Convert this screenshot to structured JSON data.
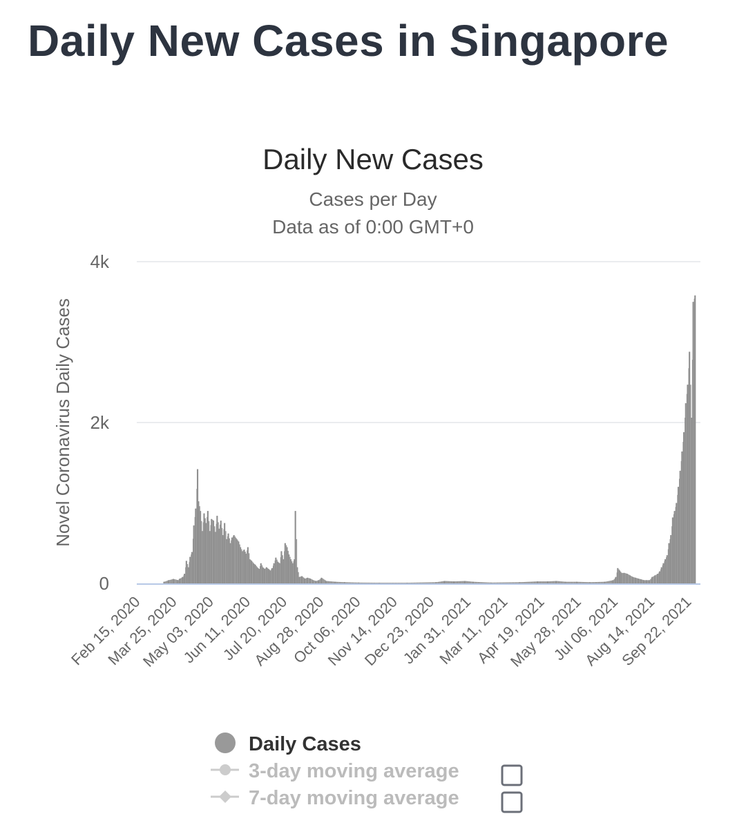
{
  "page": {
    "title": "Daily New Cases in Singapore"
  },
  "chart_data": {
    "type": "bar",
    "title": "Daily New Cases",
    "subtitle": "Cases per Day",
    "subtitle2": "Data as of 0:00 GMT+0",
    "ylabel": "Novel Coronavirus Daily Cases",
    "xlabel": "",
    "ylim": [
      0,
      4000
    ],
    "yticks": [
      {
        "value": 0,
        "label": "0"
      },
      {
        "value": 2000,
        "label": "2k"
      },
      {
        "value": 4000,
        "label": "4k"
      }
    ],
    "x_start": "2020-02-15",
    "x_end": "2021-10-12",
    "xtick_labels": [
      "Feb 15, 2020",
      "Mar 25, 2020",
      "May 03, 2020",
      "Jun 11, 2020",
      "Jul 20, 2020",
      "Aug 28, 2020",
      "Oct 06, 2020",
      "Nov 14, 2020",
      "Dec 23, 2020",
      "Jan 31, 2021",
      "Mar 11, 2021",
      "Apr 19, 2021",
      "May 28, 2021",
      "Jul 06, 2021",
      "Aug 14, 2021",
      "Sep 22, 2021"
    ],
    "grid": true,
    "legend_position": "bottom",
    "series": [
      {
        "name": "Daily Cases",
        "color": "#999999",
        "points": [
          [
            "2020-03-15",
            20
          ],
          [
            "2020-03-20",
            40
          ],
          [
            "2020-03-25",
            55
          ],
          [
            "2020-03-30",
            40
          ],
          [
            "2020-04-01",
            60
          ],
          [
            "2020-04-04",
            80
          ],
          [
            "2020-04-06",
            120
          ],
          [
            "2020-04-08",
            280
          ],
          [
            "2020-04-10",
            200
          ],
          [
            "2020-04-12",
            330
          ],
          [
            "2020-04-14",
            390
          ],
          [
            "2020-04-16",
            720
          ],
          [
            "2020-04-18",
            930
          ],
          [
            "2020-04-20",
            1420
          ],
          [
            "2020-04-21",
            1020
          ],
          [
            "2020-04-23",
            900
          ],
          [
            "2020-04-25",
            650
          ],
          [
            "2020-04-27",
            870
          ],
          [
            "2020-04-29",
            750
          ],
          [
            "2020-05-01",
            900
          ],
          [
            "2020-05-03",
            650
          ],
          [
            "2020-05-05",
            800
          ],
          [
            "2020-05-07",
            780
          ],
          [
            "2020-05-09",
            640
          ],
          [
            "2020-05-11",
            840
          ],
          [
            "2020-05-13",
            680
          ],
          [
            "2020-05-15",
            780
          ],
          [
            "2020-05-17",
            600
          ],
          [
            "2020-05-19",
            750
          ],
          [
            "2020-05-21",
            550
          ],
          [
            "2020-05-23",
            620
          ],
          [
            "2020-05-25",
            500
          ],
          [
            "2020-05-27",
            570
          ],
          [
            "2020-05-29",
            600
          ],
          [
            "2020-06-01",
            550
          ],
          [
            "2020-06-03",
            520
          ],
          [
            "2020-06-05",
            450
          ],
          [
            "2020-06-07",
            400
          ],
          [
            "2020-06-09",
            420
          ],
          [
            "2020-06-11",
            370
          ],
          [
            "2020-06-13",
            450
          ],
          [
            "2020-06-15",
            300
          ],
          [
            "2020-06-17",
            280
          ],
          [
            "2020-06-19",
            250
          ],
          [
            "2020-06-21",
            230
          ],
          [
            "2020-06-23",
            200
          ],
          [
            "2020-06-25",
            180
          ],
          [
            "2020-06-27",
            250
          ],
          [
            "2020-06-29",
            200
          ],
          [
            "2020-07-01",
            180
          ],
          [
            "2020-07-03",
            200
          ],
          [
            "2020-07-05",
            180
          ],
          [
            "2020-07-07",
            160
          ],
          [
            "2020-07-09",
            190
          ],
          [
            "2020-07-11",
            250
          ],
          [
            "2020-07-13",
            320
          ],
          [
            "2020-07-15",
            270
          ],
          [
            "2020-07-17",
            250
          ],
          [
            "2020-07-19",
            400
          ],
          [
            "2020-07-21",
            300
          ],
          [
            "2020-07-23",
            500
          ],
          [
            "2020-07-25",
            450
          ],
          [
            "2020-07-27",
            360
          ],
          [
            "2020-07-29",
            300
          ],
          [
            "2020-07-31",
            250
          ],
          [
            "2020-08-02",
            300
          ],
          [
            "2020-08-03",
            900
          ],
          [
            "2020-08-05",
            200
          ],
          [
            "2020-08-07",
            80
          ],
          [
            "2020-08-10",
            90
          ],
          [
            "2020-08-13",
            60
          ],
          [
            "2020-08-16",
            70
          ],
          [
            "2020-08-19",
            60
          ],
          [
            "2020-08-22",
            40
          ],
          [
            "2020-08-25",
            30
          ],
          [
            "2020-08-28",
            40
          ],
          [
            "2020-08-31",
            70
          ],
          [
            "2020-09-05",
            30
          ],
          [
            "2020-09-15",
            20
          ],
          [
            "2020-09-25",
            15
          ],
          [
            "2020-10-10",
            10
          ],
          [
            "2020-11-01",
            8
          ],
          [
            "2020-12-01",
            8
          ],
          [
            "2021-01-01",
            15
          ],
          [
            "2021-01-10",
            30
          ],
          [
            "2021-01-20",
            25
          ],
          [
            "2021-02-01",
            30
          ],
          [
            "2021-02-10",
            20
          ],
          [
            "2021-03-01",
            10
          ],
          [
            "2021-04-01",
            15
          ],
          [
            "2021-04-20",
            25
          ],
          [
            "2021-05-01",
            25
          ],
          [
            "2021-05-10",
            30
          ],
          [
            "2021-05-20",
            20
          ],
          [
            "2021-06-01",
            20
          ],
          [
            "2021-06-15",
            15
          ],
          [
            "2021-07-01",
            20
          ],
          [
            "2021-07-10",
            40
          ],
          [
            "2021-07-13",
            80
          ],
          [
            "2021-07-15",
            190
          ],
          [
            "2021-07-17",
            160
          ],
          [
            "2021-07-19",
            130
          ],
          [
            "2021-07-22",
            130
          ],
          [
            "2021-07-25",
            120
          ],
          [
            "2021-07-28",
            100
          ],
          [
            "2021-07-31",
            80
          ],
          [
            "2021-08-03",
            70
          ],
          [
            "2021-08-06",
            60
          ],
          [
            "2021-08-09",
            50
          ],
          [
            "2021-08-12",
            40
          ],
          [
            "2021-08-15",
            40
          ],
          [
            "2021-08-18",
            40
          ],
          [
            "2021-08-21",
            80
          ],
          [
            "2021-08-24",
            100
          ],
          [
            "2021-08-27",
            120
          ],
          [
            "2021-08-29",
            150
          ],
          [
            "2021-08-31",
            200
          ],
          [
            "2021-09-02",
            250
          ],
          [
            "2021-09-04",
            300
          ],
          [
            "2021-09-06",
            350
          ],
          [
            "2021-09-08",
            500
          ],
          [
            "2021-09-10",
            600
          ],
          [
            "2021-09-12",
            820
          ],
          [
            "2021-09-14",
            900
          ],
          [
            "2021-09-16",
            1000
          ],
          [
            "2021-09-18",
            1200
          ],
          [
            "2021-09-20",
            1400
          ],
          [
            "2021-09-22",
            1640
          ],
          [
            "2021-09-24",
            1880
          ],
          [
            "2021-09-26",
            2240
          ],
          [
            "2021-09-28",
            2470
          ],
          [
            "2021-09-30",
            2880
          ],
          [
            "2021-10-02",
            2060
          ],
          [
            "2021-10-04",
            3500
          ],
          [
            "2021-10-06",
            3580
          ]
        ]
      }
    ]
  },
  "legend": {
    "items": [
      {
        "name": "Daily Cases",
        "color": "#999999",
        "text_color": "#333333",
        "icon": "filled-circle-icon"
      },
      {
        "name": "3-day moving average",
        "color": "#cccccc",
        "text_color": "#bbbbbb",
        "icon": "line-dot-icon"
      },
      {
        "name": "7-day moving average",
        "color": "#cccccc",
        "text_color": "#bbbbbb",
        "icon": "line-diamond-icon"
      }
    ],
    "checkbox_color": "#6b6f78"
  }
}
